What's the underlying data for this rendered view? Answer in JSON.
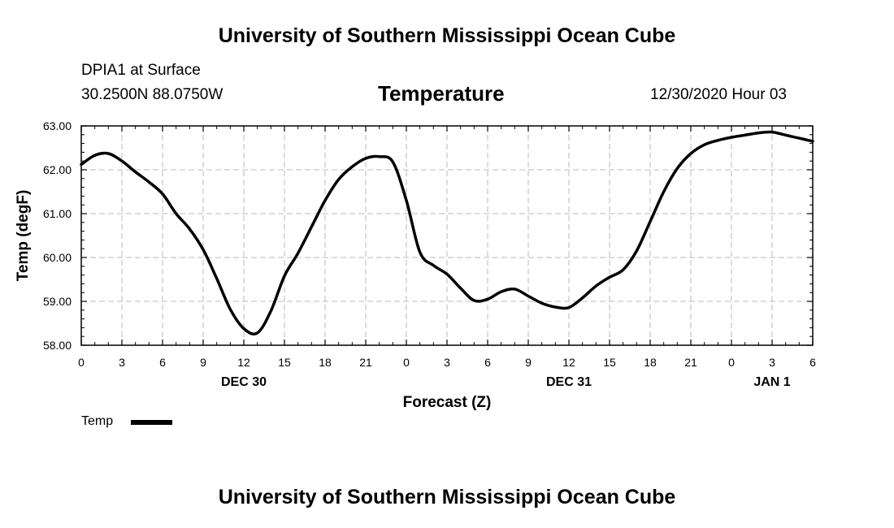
{
  "header": {
    "title": "University of Southern Mississippi Ocean Cube",
    "station": "DPIA1 at Surface",
    "coords": "30.2500N 88.0750W",
    "variable": "Temperature",
    "datetime": "12/30/2020 Hour 03"
  },
  "footer": {
    "title": "University of Southern Mississippi Ocean Cube"
  },
  "legend": {
    "label": "Temp"
  },
  "chart_data": {
    "type": "line",
    "xlabel": "Forecast (Z)",
    "ylabel": "Temp (degF)",
    "xlim": [
      0,
      54
    ],
    "ylim": [
      58,
      63
    ],
    "x_ticks": [
      0,
      3,
      6,
      9,
      12,
      15,
      18,
      21,
      24,
      27,
      30,
      33,
      36,
      39,
      42,
      45,
      48,
      51,
      54
    ],
    "x_tick_labels": [
      "0",
      "3",
      "6",
      "9",
      "12",
      "15",
      "18",
      "21",
      "0",
      "3",
      "6",
      "9",
      "12",
      "15",
      "18",
      "21",
      "0",
      "3",
      "6"
    ],
    "y_ticks": [
      58,
      59,
      60,
      61,
      62,
      63
    ],
    "y_tick_labels": [
      "58.00",
      "59.00",
      "60.00",
      "61.00",
      "62.00",
      "63.00"
    ],
    "day_labels": [
      {
        "x": 12,
        "label": "DEC 30"
      },
      {
        "x": 36,
        "label": "DEC 31"
      },
      {
        "x": 51,
        "label": "JAN 1"
      }
    ],
    "grid": true,
    "series": [
      {
        "name": "Temp",
        "color": "#000000",
        "x": [
          0,
          1,
          2,
          3,
          4,
          5,
          6,
          7,
          8,
          9,
          10,
          11,
          12,
          13,
          14,
          15,
          16,
          17,
          18,
          19,
          20,
          21,
          22,
          23,
          24,
          25,
          26,
          27,
          28,
          29,
          30,
          31,
          32,
          33,
          34,
          35,
          36,
          37,
          38,
          39,
          40,
          41,
          42,
          43,
          44,
          45,
          46,
          47,
          48,
          49,
          50,
          51,
          52,
          53,
          54
        ],
        "y": [
          62.12,
          62.33,
          62.37,
          62.2,
          61.95,
          61.72,
          61.45,
          61.0,
          60.65,
          60.18,
          59.52,
          58.82,
          58.38,
          58.28,
          58.78,
          59.58,
          60.1,
          60.7,
          61.3,
          61.78,
          62.07,
          62.26,
          62.3,
          62.18,
          61.3,
          60.12,
          59.82,
          59.62,
          59.3,
          59.02,
          59.05,
          59.22,
          59.28,
          59.12,
          58.96,
          58.87,
          58.86,
          59.08,
          59.35,
          59.55,
          59.72,
          60.15,
          60.82,
          61.5,
          62.03,
          62.37,
          62.57,
          62.67,
          62.74,
          62.79,
          62.84,
          62.86,
          62.79,
          62.72,
          62.65
        ]
      }
    ]
  }
}
